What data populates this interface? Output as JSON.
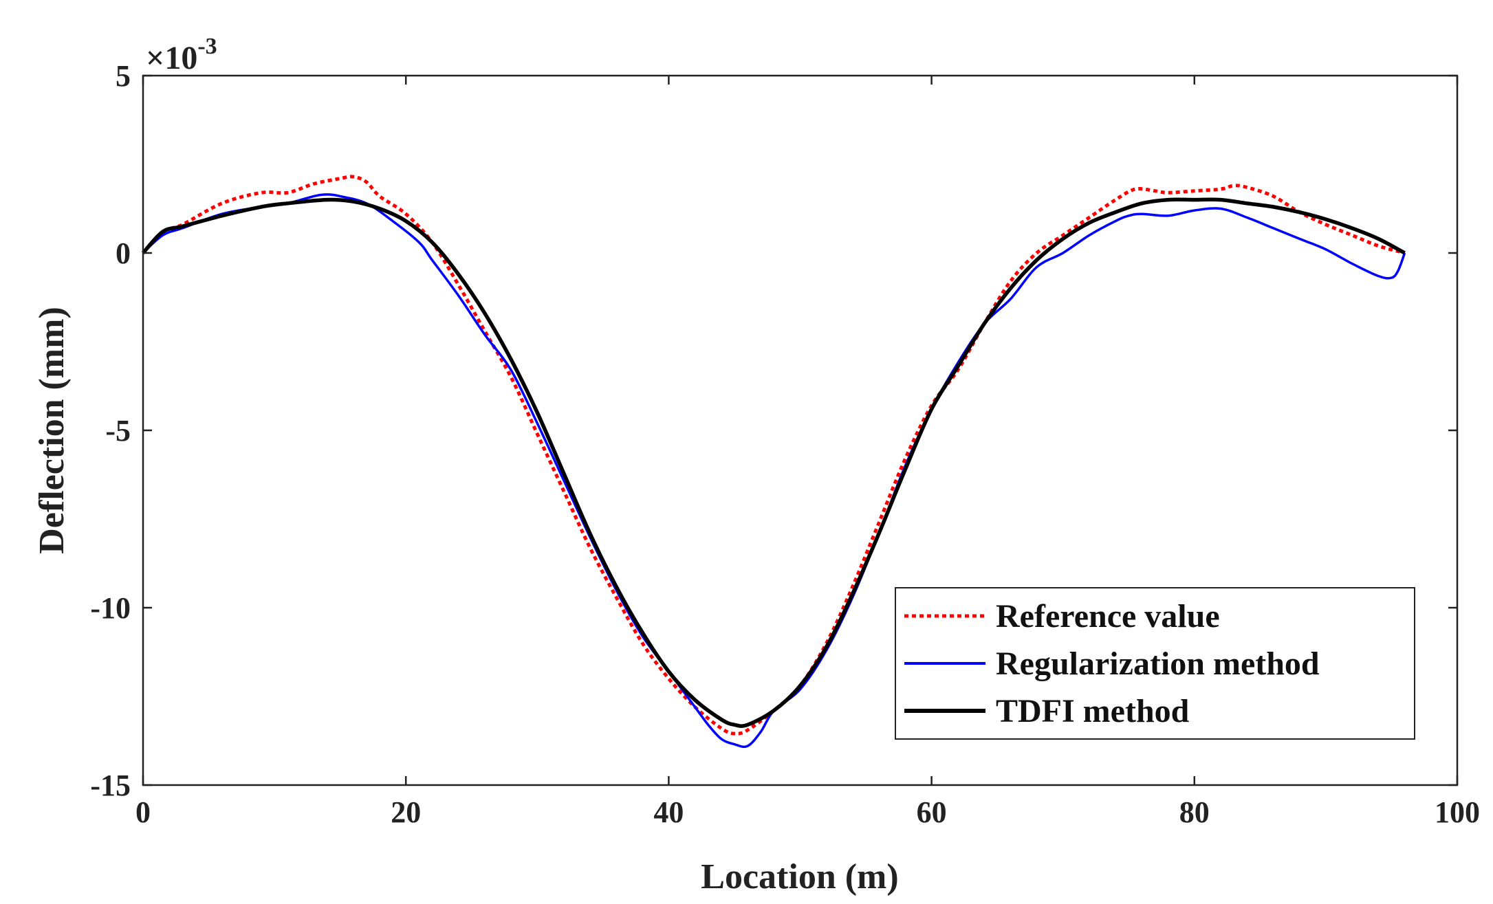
{
  "chart_data": {
    "type": "line",
    "title": "",
    "xlabel": "Location (m)",
    "ylabel": "Deflection (mm)",
    "xlim": [
      0,
      100
    ],
    "ylim": [
      -15,
      5
    ],
    "x_ticks": [
      0,
      20,
      40,
      60,
      80,
      100
    ],
    "x_tick_labels": [
      "0",
      "20",
      "40",
      "60",
      "80",
      "100"
    ],
    "y_ticks": [
      -15,
      -10,
      -5,
      0,
      5
    ],
    "y_tick_labels": [
      "-15",
      "-10",
      "-5",
      "0",
      "5"
    ],
    "y_multiplier": {
      "prefix": "×10",
      "exponent": "-3"
    },
    "grid": false,
    "legend_position": "bottom-right",
    "series": [
      {
        "name": "Reference value",
        "color": "#ff0000",
        "style": "dotted",
        "points": [
          [
            0,
            0
          ],
          [
            1.5,
            0.6
          ],
          [
            3,
            0.8
          ],
          [
            6,
            1.4
          ],
          [
            9,
            1.7
          ],
          [
            11,
            1.7
          ],
          [
            13,
            1.95
          ],
          [
            15,
            2.1
          ],
          [
            16,
            2.15
          ],
          [
            17,
            2.0
          ],
          [
            18,
            1.6
          ],
          [
            20,
            1.1
          ],
          [
            22,
            0.3
          ],
          [
            24,
            -0.9
          ],
          [
            26,
            -2.2
          ],
          [
            28,
            -3.5
          ],
          [
            30,
            -5.1
          ],
          [
            32,
            -6.7
          ],
          [
            34,
            -8.3
          ],
          [
            36,
            -9.7
          ],
          [
            38,
            -11.0
          ],
          [
            40,
            -12.0
          ],
          [
            42,
            -12.8
          ],
          [
            44,
            -13.4
          ],
          [
            45,
            -13.55
          ],
          [
            46,
            -13.45
          ],
          [
            48,
            -12.9
          ],
          [
            50,
            -12.2
          ],
          [
            52,
            -11.0
          ],
          [
            54,
            -9.4
          ],
          [
            56,
            -7.6
          ],
          [
            58,
            -5.8
          ],
          [
            60,
            -4.3
          ],
          [
            62,
            -3.3
          ],
          [
            64,
            -2.0
          ],
          [
            66,
            -0.8
          ],
          [
            68,
            0.0
          ],
          [
            70,
            0.5
          ],
          [
            72,
            1.0
          ],
          [
            74,
            1.5
          ],
          [
            75.5,
            1.8
          ],
          [
            77,
            1.75
          ],
          [
            78,
            1.7
          ],
          [
            80,
            1.75
          ],
          [
            82,
            1.8
          ],
          [
            83,
            1.9
          ],
          [
            84,
            1.85
          ],
          [
            86,
            1.6
          ],
          [
            88,
            1.15
          ],
          [
            90,
            0.8
          ],
          [
            92,
            0.5
          ],
          [
            94,
            0.2
          ],
          [
            96,
            0.0
          ]
        ]
      },
      {
        "name": "Regularization method",
        "color": "#0000ff",
        "style": "solid",
        "points": [
          [
            0,
            0
          ],
          [
            1.5,
            0.5
          ],
          [
            3,
            0.7
          ],
          [
            6,
            1.1
          ],
          [
            9,
            1.3
          ],
          [
            11,
            1.4
          ],
          [
            13,
            1.6
          ],
          [
            14,
            1.65
          ],
          [
            15,
            1.6
          ],
          [
            17,
            1.4
          ],
          [
            19,
            0.9
          ],
          [
            21,
            0.3
          ],
          [
            22,
            -0.2
          ],
          [
            24,
            -1.2
          ],
          [
            26,
            -2.3
          ],
          [
            28,
            -3.3
          ],
          [
            30,
            -4.8
          ],
          [
            32,
            -6.4
          ],
          [
            34,
            -8.0
          ],
          [
            36,
            -9.5
          ],
          [
            38,
            -10.8
          ],
          [
            40,
            -11.8
          ],
          [
            42,
            -12.8
          ],
          [
            43,
            -13.3
          ],
          [
            44,
            -13.7
          ],
          [
            45,
            -13.85
          ],
          [
            46,
            -13.9
          ],
          [
            47,
            -13.5
          ],
          [
            48,
            -12.9
          ],
          [
            50,
            -12.3
          ],
          [
            52,
            -11.2
          ],
          [
            54,
            -9.7
          ],
          [
            56,
            -7.9
          ],
          [
            58,
            -6.0
          ],
          [
            60,
            -4.4
          ],
          [
            62,
            -3.1
          ],
          [
            64,
            -2.0
          ],
          [
            66,
            -1.3
          ],
          [
            68,
            -0.4
          ],
          [
            70,
            0.0
          ],
          [
            72,
            0.5
          ],
          [
            74,
            0.9
          ],
          [
            75,
            1.05
          ],
          [
            76,
            1.1
          ],
          [
            78,
            1.05
          ],
          [
            80,
            1.2
          ],
          [
            82,
            1.25
          ],
          [
            84,
            1.0
          ],
          [
            86,
            0.7
          ],
          [
            88,
            0.4
          ],
          [
            90,
            0.1
          ],
          [
            92,
            -0.3
          ],
          [
            94,
            -0.65
          ],
          [
            95,
            -0.7
          ],
          [
            95.5,
            -0.5
          ],
          [
            96,
            0.0
          ]
        ]
      },
      {
        "name": "TDFI method",
        "color": "#000000",
        "style": "solid",
        "points": [
          [
            0,
            0
          ],
          [
            1.5,
            0.6
          ],
          [
            3,
            0.75
          ],
          [
            6,
            1.05
          ],
          [
            9,
            1.3
          ],
          [
            11,
            1.4
          ],
          [
            14,
            1.5
          ],
          [
            16,
            1.45
          ],
          [
            18,
            1.25
          ],
          [
            20,
            0.9
          ],
          [
            22,
            0.3
          ],
          [
            24,
            -0.6
          ],
          [
            26,
            -1.7
          ],
          [
            28,
            -3.0
          ],
          [
            30,
            -4.5
          ],
          [
            32,
            -6.2
          ],
          [
            34,
            -7.9
          ],
          [
            36,
            -9.4
          ],
          [
            38,
            -10.7
          ],
          [
            40,
            -11.8
          ],
          [
            42,
            -12.6
          ],
          [
            44,
            -13.15
          ],
          [
            45,
            -13.3
          ],
          [
            46,
            -13.3
          ],
          [
            48,
            -12.9
          ],
          [
            50,
            -12.2
          ],
          [
            52,
            -11.1
          ],
          [
            54,
            -9.6
          ],
          [
            56,
            -7.9
          ],
          [
            58,
            -6.1
          ],
          [
            60,
            -4.4
          ],
          [
            62,
            -3.2
          ],
          [
            64,
            -2.0
          ],
          [
            66,
            -1.0
          ],
          [
            68,
            -0.2
          ],
          [
            70,
            0.4
          ],
          [
            72,
            0.85
          ],
          [
            74,
            1.15
          ],
          [
            76,
            1.4
          ],
          [
            78,
            1.5
          ],
          [
            80,
            1.5
          ],
          [
            82,
            1.5
          ],
          [
            84,
            1.4
          ],
          [
            86,
            1.3
          ],
          [
            88,
            1.15
          ],
          [
            90,
            0.95
          ],
          [
            92,
            0.7
          ],
          [
            94,
            0.4
          ],
          [
            96,
            0.0
          ]
        ]
      }
    ]
  }
}
